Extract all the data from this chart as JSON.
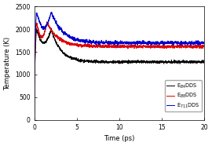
{
  "title": "",
  "xlabel": "Time (ps)",
  "ylabel": "Temperature (K)",
  "xlim": [
    0,
    20
  ],
  "ylim": [
    0,
    2500
  ],
  "yticks": [
    0,
    500,
    1000,
    1500,
    2000,
    2500
  ],
  "xticks": [
    0,
    5,
    10,
    15,
    20
  ],
  "legend": [
    {
      "label": "E$_{B4}$DDS",
      "color": "#000000"
    },
    {
      "label": "E$_{B8}$DDS",
      "color": "#dd0000"
    },
    {
      "label": "E$_{711}$DDS",
      "color": "#0000cc"
    }
  ],
  "line_width": 0.7,
  "seed": 7,
  "background_color": "#ffffff"
}
